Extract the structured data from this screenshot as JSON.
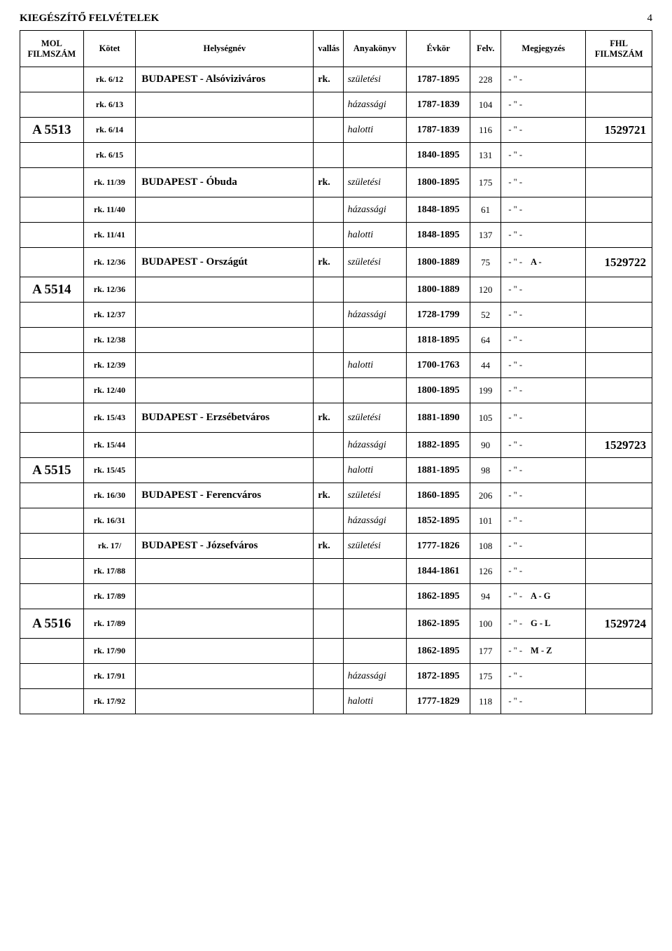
{
  "page_title": "KIEGÉSZÍTŐ FELVÉTELEK",
  "page_number": "4",
  "headers": {
    "mol": "MOL FILMSZÁM",
    "kotet": "Kötet",
    "helysegnev": "Helységnév",
    "vallas": "vallás",
    "anyakonyv": "Anyakönyv",
    "evkor": "Évkör",
    "felv": "Felv.",
    "megjegyzes": "Megjegyzés",
    "fhl": "FHL FILMSZÁM"
  },
  "ditto": "- \" -",
  "rows": [
    {
      "mol": "",
      "kotet": "rk. 6/12",
      "hely": "BUDAPEST - Alsóviziváros",
      "vall": "rk.",
      "anya": "születési",
      "evkor": "1787-1895",
      "felv": "228",
      "megj": "- \" -",
      "megj_extra": "",
      "fhl": ""
    },
    {
      "mol": "",
      "kotet": "rk. 6/13",
      "hely": "",
      "vall": "",
      "anya": "házassági",
      "evkor": "1787-1839",
      "felv": "104",
      "megj": "- \" -",
      "megj_extra": "",
      "fhl": ""
    },
    {
      "mol": "A 5513",
      "kotet": "rk. 6/14",
      "hely": "",
      "vall": "",
      "anya": "halotti",
      "evkor": "1787-1839",
      "felv": "116",
      "megj": "- \" -",
      "megj_extra": "",
      "fhl": "1529721"
    },
    {
      "mol": "",
      "kotet": "rk. 6/15",
      "hely": "",
      "vall": "",
      "anya": "",
      "evkor": "1840-1895",
      "felv": "131",
      "megj": "- \" -",
      "megj_extra": "",
      "fhl": ""
    },
    {
      "mol": "",
      "kotet": "rk. 11/39",
      "hely": "BUDAPEST - Óbuda",
      "vall": "rk.",
      "anya": "születési",
      "evkor": "1800-1895",
      "felv": "175",
      "megj": "- \" -",
      "megj_extra": "",
      "fhl": ""
    },
    {
      "mol": "",
      "kotet": "rk. 11/40",
      "hely": "",
      "vall": "",
      "anya": "házassági",
      "evkor": "1848-1895",
      "felv": "61",
      "megj": "- \" -",
      "megj_extra": "",
      "fhl": ""
    },
    {
      "mol": "",
      "kotet": "rk. 11/41",
      "hely": "",
      "vall": "",
      "anya": "halotti",
      "evkor": "1848-1895",
      "felv": "137",
      "megj": "- \" -",
      "megj_extra": "",
      "fhl": ""
    },
    {
      "mol": "",
      "kotet": "rk. 12/36",
      "hely": "BUDAPEST - Országút",
      "vall": "rk.",
      "anya": "születési",
      "evkor": "1800-1889",
      "felv": "75",
      "megj": "- \" -",
      "megj_extra": "A -",
      "fhl": "1529722"
    },
    {
      "mol": "A 5514",
      "kotet": "rk. 12/36",
      "hely": "",
      "vall": "",
      "anya": "",
      "evkor": "1800-1889",
      "felv": "120",
      "megj": "- \" -",
      "megj_extra": "",
      "fhl": ""
    },
    {
      "mol": "",
      "kotet": "rk. 12/37",
      "hely": "",
      "vall": "",
      "anya": "házassági",
      "evkor": "1728-1799",
      "felv": "52",
      "megj": "- \" -",
      "megj_extra": "",
      "fhl": ""
    },
    {
      "mol": "",
      "kotet": "rk. 12/38",
      "hely": "",
      "vall": "",
      "anya": "",
      "evkor": "1818-1895",
      "felv": "64",
      "megj": "- \" -",
      "megj_extra": "",
      "fhl": ""
    },
    {
      "mol": "",
      "kotet": "rk. 12/39",
      "hely": "",
      "vall": "",
      "anya": "halotti",
      "evkor": "1700-1763",
      "felv": "44",
      "megj": "- \" -",
      "megj_extra": "",
      "fhl": ""
    },
    {
      "mol": "",
      "kotet": "rk. 12/40",
      "hely": "",
      "vall": "",
      "anya": "",
      "evkor": "1800-1895",
      "felv": "199",
      "megj": "- \" -",
      "megj_extra": "",
      "fhl": ""
    },
    {
      "mol": "",
      "kotet": "rk. 15/43",
      "hely": "BUDAPEST - Erzsébetváros",
      "vall": "rk.",
      "anya": "születési",
      "evkor": "1881-1890",
      "felv": "105",
      "megj": "- \" -",
      "megj_extra": "",
      "fhl": ""
    },
    {
      "mol": "",
      "kotet": "rk. 15/44",
      "hely": "",
      "vall": "",
      "anya": "házassági",
      "evkor": "1882-1895",
      "felv": "90",
      "megj": "- \" -",
      "megj_extra": "",
      "fhl": "1529723"
    },
    {
      "mol": "A 5515",
      "kotet": "rk. 15/45",
      "hely": "",
      "vall": "",
      "anya": "halotti",
      "evkor": "1881-1895",
      "felv": "98",
      "megj": "- \" -",
      "megj_extra": "",
      "fhl": ""
    },
    {
      "mol": "",
      "kotet": "rk. 16/30",
      "hely": "BUDAPEST - Ferencváros",
      "vall": "rk.",
      "anya": "születési",
      "evkor": "1860-1895",
      "felv": "206",
      "megj": "- \" -",
      "megj_extra": "",
      "fhl": ""
    },
    {
      "mol": "",
      "kotet": "rk. 16/31",
      "hely": "",
      "vall": "",
      "anya": "házassági",
      "evkor": "1852-1895",
      "felv": "101",
      "megj": "- \" -",
      "megj_extra": "",
      "fhl": ""
    },
    {
      "mol": "",
      "kotet": "rk. 17/",
      "hely": "BUDAPEST - Józsefváros",
      "vall": "rk.",
      "anya": "születési",
      "evkor": "1777-1826",
      "felv": "108",
      "megj": "- \" -",
      "megj_extra": "",
      "fhl": ""
    },
    {
      "mol": "",
      "kotet": "rk. 17/88",
      "hely": "",
      "vall": "",
      "anya": "",
      "evkor": "1844-1861",
      "felv": "126",
      "megj": "- \" -",
      "megj_extra": "",
      "fhl": ""
    },
    {
      "mol": "",
      "kotet": "rk. 17/89",
      "hely": "",
      "vall": "",
      "anya": "",
      "evkor": "1862-1895",
      "felv": "94",
      "megj": "- \" -",
      "megj_extra": "A - G",
      "fhl": ""
    },
    {
      "mol": "A 5516",
      "kotet": "rk. 17/89",
      "hely": "",
      "vall": "",
      "anya": "",
      "evkor": "1862-1895",
      "felv": "100",
      "megj": "- \" -",
      "megj_extra": "G - L",
      "fhl": "1529724"
    },
    {
      "mol": "",
      "kotet": "rk. 17/90",
      "hely": "",
      "vall": "",
      "anya": "",
      "evkor": "1862-1895",
      "felv": "177",
      "megj": "- \" -",
      "megj_extra": "M - Z",
      "fhl": ""
    },
    {
      "mol": "",
      "kotet": "rk. 17/91",
      "hely": "",
      "vall": "",
      "anya": "házassági",
      "evkor": "1872-1895",
      "felv": "175",
      "megj": "- \" -",
      "megj_extra": "",
      "fhl": ""
    },
    {
      "mol": "",
      "kotet": "rk. 17/92",
      "hely": "",
      "vall": "",
      "anya": "halotti",
      "evkor": "1777-1829",
      "felv": "118",
      "megj": "- \" -",
      "megj_extra": "",
      "fhl": ""
    }
  ],
  "group_breaks_after": [
    3,
    6,
    12,
    20
  ],
  "tall_rows": [
    4,
    7,
    13,
    21
  ]
}
